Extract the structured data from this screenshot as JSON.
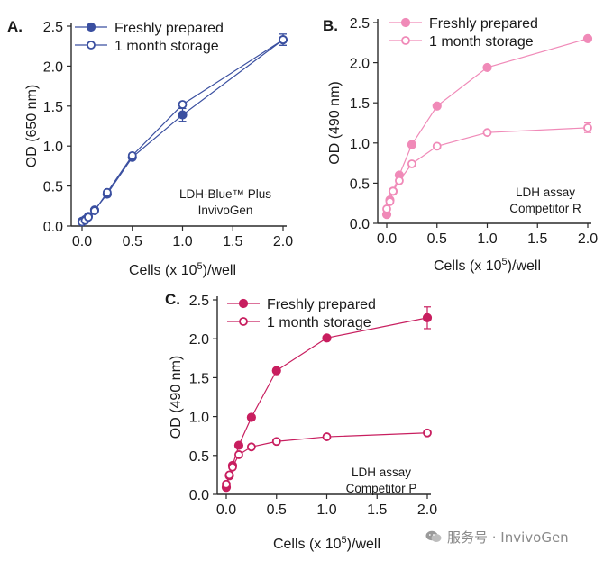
{
  "chart_data": [
    {
      "type": "line",
      "panel_label": "A.",
      "xlabel": "Cells (x 10",
      "xlabel_sup": "5",
      "xlabel_tail": ")/well",
      "ylabel": "OD (650 nm)",
      "xlim": [
        0,
        2.0
      ],
      "ylim": [
        0,
        2.5
      ],
      "xticks": [
        "0.0",
        "0.5",
        "1.0",
        "1.5",
        "2.0"
      ],
      "yticks": [
        "0.0",
        "0.5",
        "1.0",
        "1.5",
        "2.0",
        "2.5"
      ],
      "annotation": [
        "LDH-Blue™ Plus",
        "InvivoGen"
      ],
      "legend_position": "top-left",
      "color": "#3a4fa0",
      "series": [
        {
          "name": "Freshly prepared",
          "marker": "filled",
          "x": [
            0,
            0.03125,
            0.0625,
            0.125,
            0.25,
            0.5,
            1.0,
            2.0
          ],
          "y": [
            0.06,
            0.08,
            0.12,
            0.2,
            0.4,
            0.86,
            1.39,
            2.33
          ],
          "err": [
            0,
            0,
            0,
            0,
            0,
            0,
            0.08,
            0.07
          ]
        },
        {
          "name": "1 month storage",
          "marker": "open",
          "x": [
            0,
            0.03125,
            0.0625,
            0.125,
            0.25,
            0.5,
            1.0,
            2.0
          ],
          "y": [
            0.05,
            0.07,
            0.11,
            0.19,
            0.42,
            0.88,
            1.52,
            2.33
          ],
          "err": [
            0,
            0,
            0,
            0,
            0,
            0,
            0,
            0.07
          ]
        }
      ]
    },
    {
      "type": "line",
      "panel_label": "B.",
      "xlabel": "Cells (x 10",
      "xlabel_sup": "5",
      "xlabel_tail": ")/well",
      "ylabel": "OD (490 nm)",
      "xlim": [
        0,
        2.0
      ],
      "ylim": [
        0,
        2.5
      ],
      "xticks": [
        "0.0",
        "0.5",
        "1.0",
        "1.5",
        "2.0"
      ],
      "yticks": [
        "0.0",
        "0.5",
        "1.0",
        "1.5",
        "2.0",
        "2.5"
      ],
      "annotation": [
        "LDH assay",
        "Competitor R"
      ],
      "legend_position": "top-left",
      "color": "#f08ab8",
      "series": [
        {
          "name": "Freshly prepared",
          "marker": "filled",
          "x": [
            0,
            0.03125,
            0.0625,
            0.125,
            0.25,
            0.5,
            1.0,
            2.0
          ],
          "y": [
            0.11,
            0.29,
            0.4,
            0.6,
            0.98,
            1.46,
            1.94,
            2.3
          ],
          "err": [
            0,
            0,
            0,
            0,
            0,
            0,
            0,
            0
          ]
        },
        {
          "name": "1 month storage",
          "marker": "open",
          "x": [
            0,
            0.03125,
            0.0625,
            0.125,
            0.25,
            0.5,
            1.0,
            2.0
          ],
          "y": [
            0.18,
            0.27,
            0.4,
            0.53,
            0.74,
            0.96,
            1.13,
            1.19
          ],
          "err": [
            0,
            0,
            0,
            0,
            0,
            0,
            0,
            0.06
          ]
        }
      ]
    },
    {
      "type": "line",
      "panel_label": "C.",
      "xlabel": "Cells (x 10",
      "xlabel_sup": "5",
      "xlabel_tail": ")/well",
      "ylabel": "OD (490 nm)",
      "xlim": [
        0,
        2.0
      ],
      "ylim": [
        0,
        2.5
      ],
      "xticks": [
        "0.0",
        "0.5",
        "1.0",
        "1.5",
        "2.0"
      ],
      "yticks": [
        "0.0",
        "0.5",
        "1.0",
        "1.5",
        "2.0",
        "2.5"
      ],
      "annotation": [
        "LDH assay",
        "Competitor P"
      ],
      "legend_position": "top-left",
      "color": "#c81e5f",
      "series": [
        {
          "name": "Freshly prepared",
          "marker": "filled",
          "x": [
            0,
            0.03125,
            0.0625,
            0.125,
            0.25,
            0.5,
            1.0,
            2.0
          ],
          "y": [
            0.09,
            0.24,
            0.37,
            0.63,
            0.99,
            1.59,
            2.01,
            2.27
          ],
          "err": [
            0,
            0,
            0,
            0,
            0,
            0,
            0,
            0.14
          ]
        },
        {
          "name": "1 month storage",
          "marker": "open",
          "x": [
            0,
            0.03125,
            0.0625,
            0.125,
            0.25,
            0.5,
            1.0,
            2.0
          ],
          "y": [
            0.13,
            0.25,
            0.35,
            0.51,
            0.61,
            0.68,
            0.74,
            0.79
          ],
          "err": [
            0,
            0,
            0,
            0,
            0,
            0,
            0,
            0
          ]
        }
      ]
    }
  ],
  "watermark": {
    "text": "服务号 · InvivoGen",
    "icon": "wechat-icon"
  }
}
